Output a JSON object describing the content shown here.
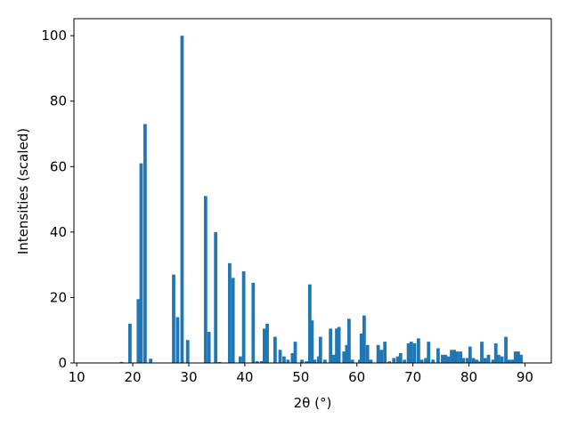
{
  "chart_data": {
    "type": "bar",
    "x_label": "2θ (°)",
    "y_label": "Intensities (scaled)",
    "color": "#1f77b4",
    "x": [
      18.0,
      19.5,
      21.0,
      21.5,
      22.2,
      23.2,
      27.3,
      28.0,
      28.8,
      29.8,
      33.0,
      33.6,
      34.8,
      35.5,
      37.3,
      37.9,
      39.2,
      39.8,
      41.5,
      42.2,
      43.0,
      43.5,
      44.0,
      45.4,
      46.3,
      47.0,
      47.7,
      48.5,
      49.0,
      50.2,
      51.0,
      51.6,
      52.0,
      52.5,
      53.2,
      53.5,
      54.3,
      55.3,
      55.9,
      56.4,
      56.8,
      57.7,
      58.2,
      58.6,
      59.2,
      60.5,
      60.8,
      61.3,
      61.9,
      62.5,
      63.8,
      64.4,
      65.0,
      65.8,
      66.6,
      67.3,
      67.8,
      68.5,
      69.2,
      69.7,
      70.3,
      71.0,
      71.6,
      72.3,
      72.8,
      73.6,
      74.5,
      75.3,
      75.8,
      76.3,
      76.9,
      77.4,
      77.9,
      78.5,
      79.0,
      79.7,
      80.2,
      80.8,
      81.4,
      82.0,
      82.3,
      82.9,
      83.5,
      84.3,
      84.8,
      85.3,
      85.9,
      86.6,
      87.2,
      87.8,
      88.3,
      88.8,
      89.3
    ],
    "values": [
      0.3,
      12,
      19.5,
      61,
      73,
      1.3,
      27,
      14,
      100,
      7,
      51,
      9.5,
      40,
      0.3,
      30.5,
      26,
      2,
      28,
      24.5,
      0.5,
      0.5,
      10.5,
      12,
      8,
      4,
      2,
      1,
      3,
      6.5,
      1,
      0.5,
      24,
      13,
      1,
      2,
      8,
      1,
      10.5,
      2.5,
      10.5,
      11,
      3.5,
      5.5,
      13.5,
      1,
      1,
      9,
      14.5,
      5.5,
      1,
      5.5,
      4,
      6.5,
      0.5,
      1.5,
      2,
      3,
      1,
      6,
      6.5,
      6,
      7.5,
      1,
      1.5,
      6.5,
      1,
      4.5,
      2.5,
      2.5,
      2,
      4,
      4,
      3.5,
      3.5,
      1.5,
      1.5,
      5,
      1.5,
      1,
      0.5,
      6.5,
      1.5,
      2.5,
      1,
      6,
      2.5,
      2,
      8,
      1,
      1,
      3.5,
      3.5,
      2.5
    ],
    "xlim": [
      9.5,
      94.7
    ],
    "ylim": [
      0,
      105.2
    ],
    "xticks": [
      10,
      20,
      30,
      40,
      50,
      60,
      70,
      80,
      90
    ],
    "yticks": [
      0,
      20,
      40,
      60,
      80,
      100
    ]
  }
}
